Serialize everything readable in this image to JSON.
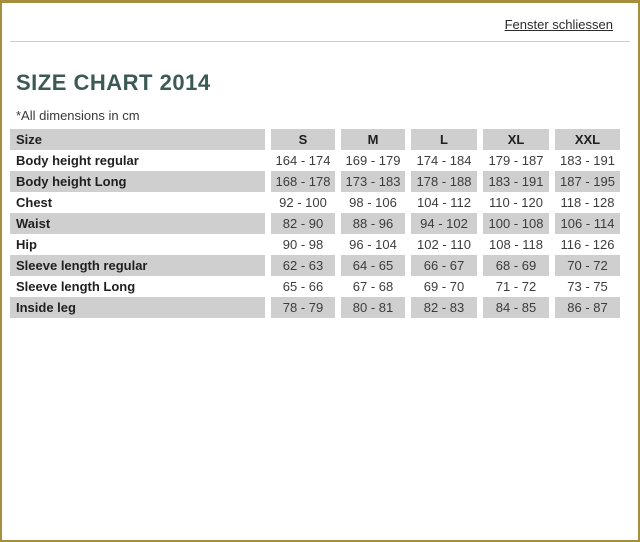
{
  "window": {
    "close_link": "Fenster schliessen",
    "border_color": "#a68d3e"
  },
  "page": {
    "title": "SIZE CHART 2014",
    "subtitle": "*All dimensions in cm",
    "title_color": "#3b5a55"
  },
  "table": {
    "columns": [
      "Size",
      "S",
      "M",
      "L",
      "XL",
      "XXL"
    ],
    "rows": [
      {
        "label": "Body height regular",
        "values": [
          "164 - 174",
          "169 - 179",
          "174 - 184",
          "179 - 187",
          "183 - 191"
        ]
      },
      {
        "label": "Body height Long",
        "values": [
          "168 - 178",
          "173 - 183",
          "178 - 188",
          "183 - 191",
          "187 - 195"
        ]
      },
      {
        "label": "Chest",
        "values": [
          "92 - 100",
          "98 - 106",
          "104 - 112",
          "110 - 120",
          "118 - 128"
        ]
      },
      {
        "label": "Waist",
        "values": [
          "82 - 90",
          "88 - 96",
          "94 - 102",
          "100 - 108",
          "106 - 114"
        ]
      },
      {
        "label": "Hip",
        "values": [
          "90 - 98",
          "96 - 104",
          "102 - 110",
          "108 - 118",
          "116 - 126"
        ]
      },
      {
        "label": "Sleeve length regular",
        "values": [
          "62 - 63",
          "64 - 65",
          "66 - 67",
          "68 - 69",
          "70 - 72"
        ]
      },
      {
        "label": "Sleeve length Long",
        "values": [
          "65 - 66",
          "67 - 68",
          "69 - 70",
          "71 - 72",
          "73 - 75"
        ]
      },
      {
        "label": "Inside leg",
        "values": [
          "78 - 79",
          "80 - 81",
          "82 - 83",
          "84 - 85",
          "86 - 87"
        ]
      }
    ],
    "unit_note": "cm"
  }
}
